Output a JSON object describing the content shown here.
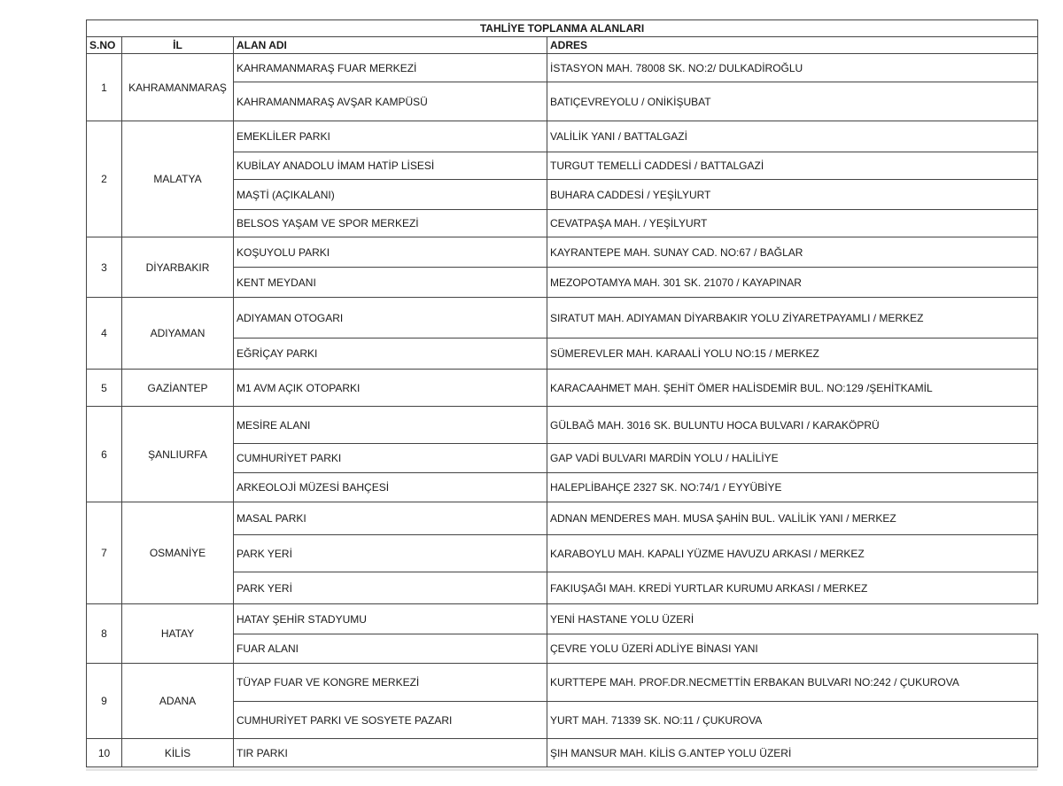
{
  "document": {
    "title": "TAHLİYE TOPLANMA ALANLARI",
    "columns": [
      "S.NO",
      "İL",
      "ALAN ADI",
      "ADRES"
    ],
    "groups": [
      {
        "sno": "1",
        "il": "KAHRAMANMARAŞ",
        "rows": [
          {
            "alan": "KAHRAMANMARAŞ FUAR MERKEZİ",
            "adres": "İSTASYON MAH. 78008 SK. NO:2/ DULKADİROĞLU"
          },
          {
            "alan": "KAHRAMANMARAŞ AVŞAR KAMPÜSÜ",
            "adres": "BATIÇEVREYOLU / ONİKİŞUBAT"
          }
        ]
      },
      {
        "sno": "2",
        "il": "MALATYA",
        "rows": [
          {
            "alan": "EMEKLİLER PARKI",
            "adres": "VALİLİK YANI / BATTALGAZİ"
          },
          {
            "alan": "KUBİLAY ANADOLU İMAM HATİP LİSESİ",
            "adres": "TURGUT TEMELLİ CADDESİ / BATTALGAZİ"
          },
          {
            "alan": "MAŞTİ (AÇIKALANI)",
            "adres": "BUHARA CADDESİ / YEŞİLYURT"
          },
          {
            "alan": "BELSOS YAŞAM VE SPOR MERKEZİ",
            "adres": "CEVATPAŞA MAH. / YEŞİLYURT"
          }
        ]
      },
      {
        "sno": "3",
        "il": "DİYARBAKIR",
        "rows": [
          {
            "alan": "KOŞUYOLU PARKI",
            "adres": "KAYRANTEPE MAH. SUNAY CAD. NO:67 / BAĞLAR"
          },
          {
            "alan": "KENT MEYDANI",
            "adres": "MEZOPOTAMYA MAH. 301 SK. 21070 / KAYAPINAR"
          }
        ]
      },
      {
        "sno": "4",
        "il": "ADIYAMAN",
        "rows": [
          {
            "alan": "ADIYAMAN OTOGARI",
            "adres": "SIRATUT MAH. ADIYAMAN DİYARBAKIR YOLU ZİYARETPAYAMLI / MERKEZ"
          },
          {
            "alan": "EĞRİÇAY PARKI",
            "adres": "SÜMEREVLER MAH. KARAALİ YOLU NO:15 / MERKEZ"
          }
        ]
      },
      {
        "sno": "5",
        "il": "GAZİANTEP",
        "rows": [
          {
            "alan": "M1 AVM AÇIK OTOPARKI",
            "adres": "KARACAAHMET MAH. ŞEHİT ÖMER HALİSDEMİR BUL. NO:129 /ŞEHİTKAMİL"
          }
        ]
      },
      {
        "sno": "6",
        "il": "ŞANLIURFA",
        "rows": [
          {
            "alan": "MESİRE ALANI",
            "adres": "GÜLBAĞ MAH. 3016 SK. BULUNTU HOCA BULVARI / KARAKÖPRÜ"
          },
          {
            "alan": "CUMHURİYET PARKI",
            "adres": "GAP VADİ BULVARI MARDİN YOLU / HALİLİYE"
          },
          {
            "alan": "ARKEOLOJİ MÜZESİ BAHÇESİ",
            "adres": "HALEPLİBAHÇE 2327 SK. NO:74/1 / EYYÜBİYE"
          }
        ]
      },
      {
        "sno": "7",
        "il": "OSMANİYE",
        "rows": [
          {
            "alan": "MASAL PARKI",
            "adres": "ADNAN MENDERES MAH. MUSA ŞAHİN BUL. VALİLİK YANI / MERKEZ"
          },
          {
            "alan": "PARK YERİ",
            "adres": "KARABOYLU MAH. KAPALI YÜZME HAVUZU ARKASI / MERKEZ"
          },
          {
            "alan": "PARK YERİ",
            "adres": "FAKIUŞAĞI MAH. KREDİ YURTLAR KURUMU ARKASI / MERKEZ"
          }
        ]
      },
      {
        "sno": "8",
        "il": "HATAY",
        "rows": [
          {
            "alan": "HATAY ŞEHİR STADYUMU",
            "adres": "YENİ HASTANE YOLU ÜZERİ"
          },
          {
            "alan": "FUAR ALANI",
            "adres": "ÇEVRE YOLU ÜZERİ ADLİYE BİNASI YANI"
          }
        ]
      },
      {
        "sno": "9",
        "il": "ADANA",
        "rows": [
          {
            "alan": "TÜYAP FUAR VE KONGRE MERKEZİ",
            "adres": "KURTTEPE MAH. PROF.DR.NECMETTİN ERBAKAN BULVARI NO:242 / ÇUKUROVA"
          },
          {
            "alan": "CUMHURİYET PARKI VE SOSYETE PAZARI",
            "adres": "YURT MAH. 71339 SK. NO:11 / ÇUKUROVA"
          }
        ]
      },
      {
        "sno": "10",
        "il": "KİLİS",
        "rows": [
          {
            "alan": "TIR PARKI",
            "adres": "ŞIH MANSUR MAH. KİLİS G.ANTEP YOLU ÜZERİ"
          }
        ]
      }
    ]
  }
}
